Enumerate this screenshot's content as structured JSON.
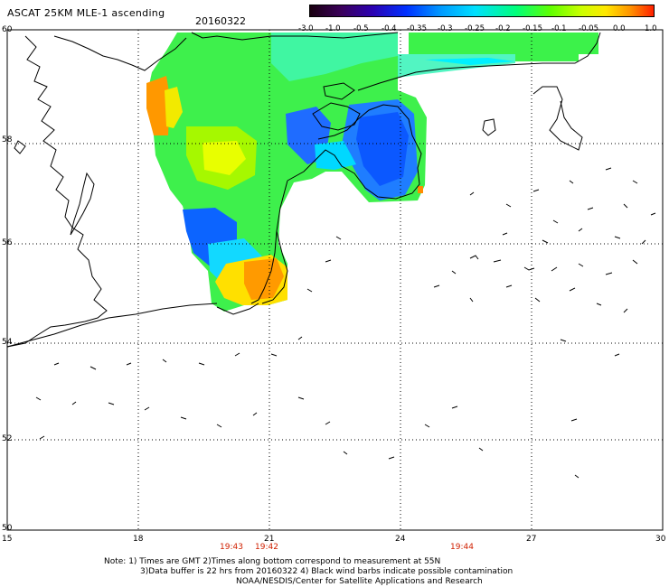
{
  "header": {
    "title": "ASCAT 25KM MLE-1 ascending",
    "date": "20160322"
  },
  "colorbar": {
    "ticks": [
      "-3.0",
      "-1.0",
      "-0.5",
      "-0.4",
      "-0.35",
      "-0.3",
      "-0.25",
      "-0.2",
      "-0.15",
      "-0.1",
      "-0.05",
      "0.0",
      "1.0"
    ],
    "colors": [
      "#1a0010",
      "#3b005a",
      "#2c00b0",
      "#0030ff",
      "#0099ff",
      "#00e0ff",
      "#00ff7a",
      "#60ff00",
      "#ccff00",
      "#ffe800",
      "#ff9600",
      "#ff2000"
    ]
  },
  "axes": {
    "lat_labels": [
      "60",
      "58",
      "56",
      "54",
      "52",
      "50"
    ],
    "lon_labels": [
      "15",
      "18",
      "21",
      "24",
      "27",
      "30"
    ]
  },
  "times": [
    "19:43",
    "19:42",
    "19:44"
  ],
  "notes": {
    "line1": "Note: 1) Times are GMT 2)Times along bottom correspond to measurement at 55N",
    "line2": "3)Data buffer is 22 hrs from 20160322 4) Black wind barbs indicate possible contamination",
    "line3": "NOAA/NESDIS/Center for Satellite Applications and Research"
  }
}
